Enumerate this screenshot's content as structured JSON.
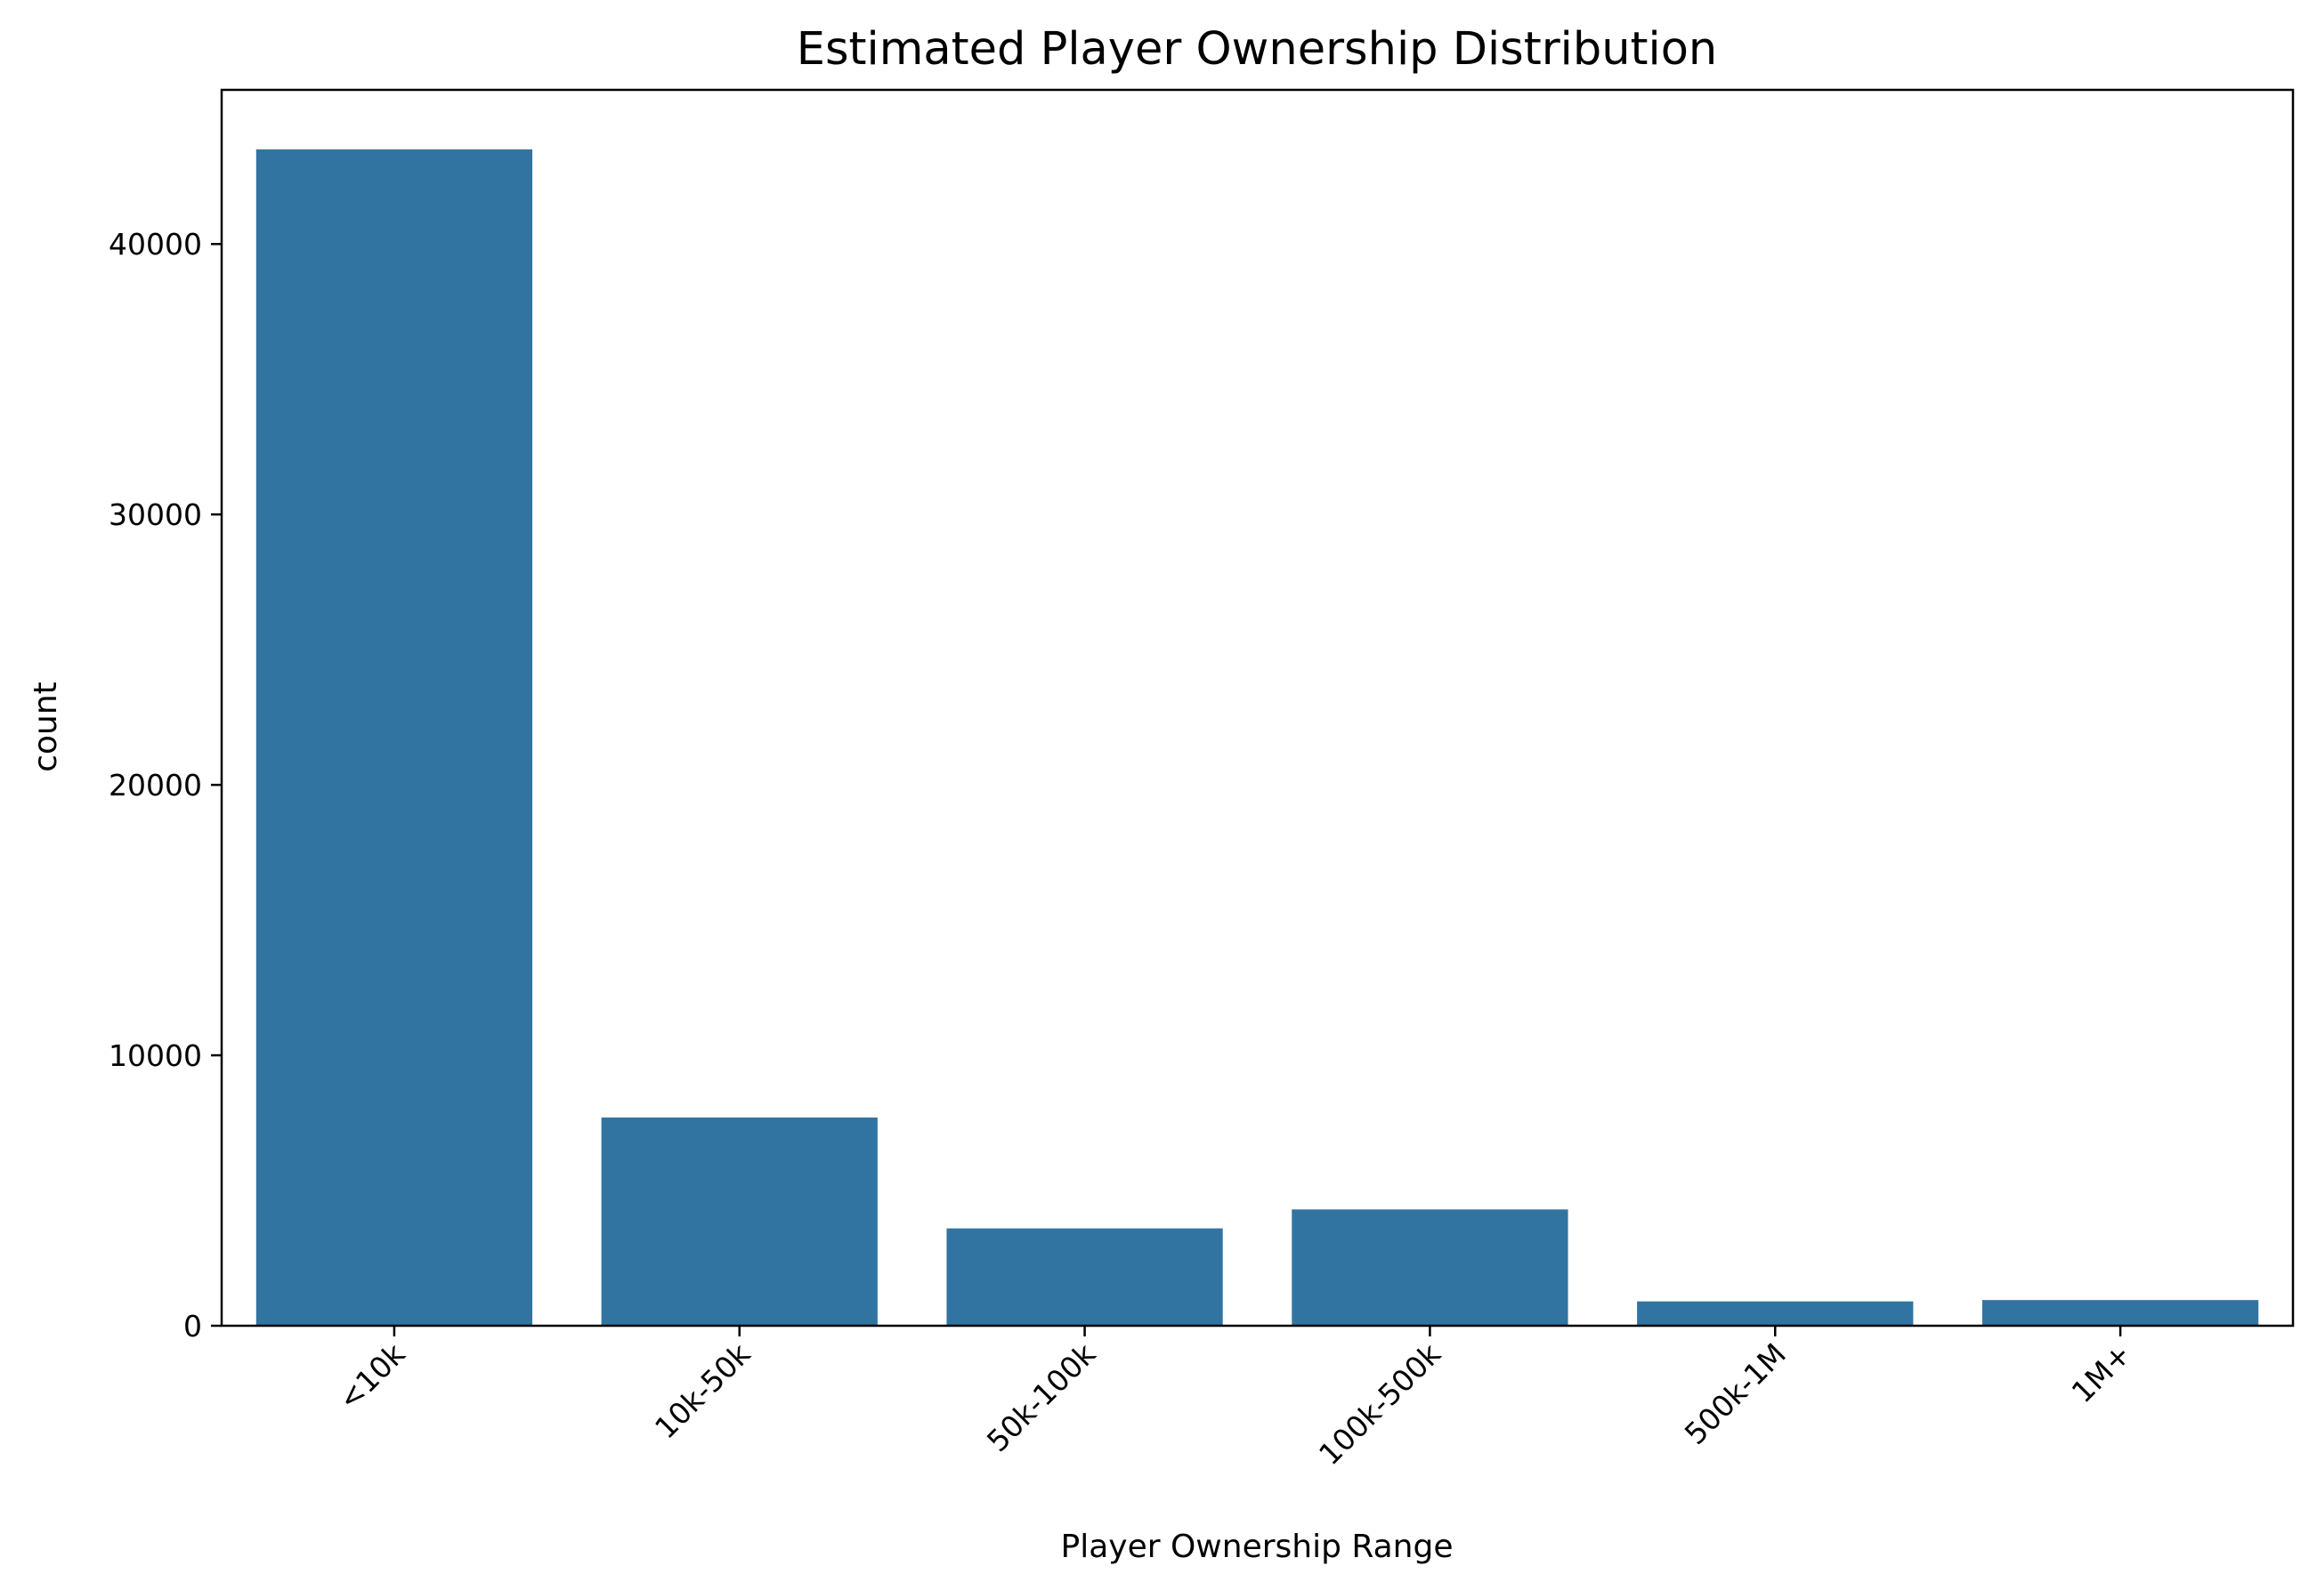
{
  "chart_data": {
    "type": "bar",
    "title": "Estimated Player Ownership Distribution",
    "xlabel": "Player Ownership Range",
    "ylabel": "count",
    "categories": [
      "<10k",
      "10k-50k",
      "50k-100k",
      "100k-500k",
      "500k-1M",
      "1M+"
    ],
    "values": [
      43500,
      7700,
      3600,
      4300,
      900,
      950
    ],
    "ylim": [
      0,
      45700
    ],
    "yticks": [
      0,
      10000,
      20000,
      30000,
      40000
    ],
    "ytick_labels": [
      "0",
      "10000",
      "20000",
      "30000",
      "40000"
    ],
    "bar_color": "#3274a1",
    "grid": false,
    "xtick_rotation_deg": 45
  }
}
